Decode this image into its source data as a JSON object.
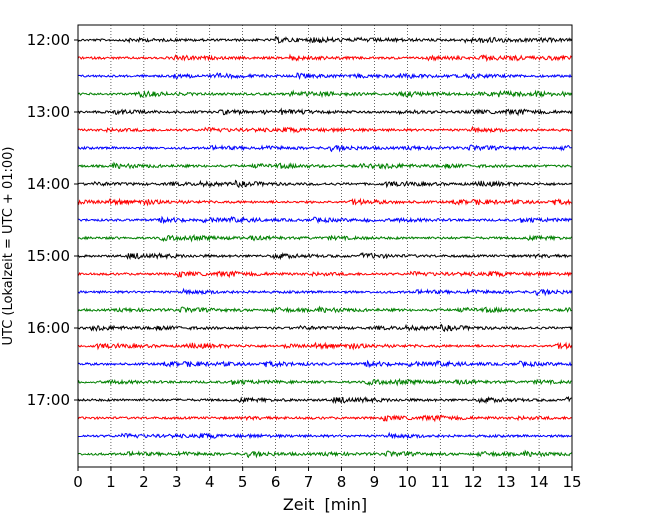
{
  "chart_data": {
    "type": "line",
    "subtype": "helicorder / seismogram drum plot",
    "title": "",
    "xlabel": "Zeit  [min]",
    "ylabel": "UTC (Lokalzeit = UTC + 01:00)",
    "xlim": [
      0,
      15
    ],
    "x_ticks": [
      0,
      1,
      2,
      3,
      4,
      5,
      6,
      7,
      8,
      9,
      10,
      11,
      12,
      13,
      14,
      15
    ],
    "x_tick_labels": [
      "0",
      "1",
      "2",
      "3",
      "4",
      "5",
      "6",
      "7",
      "8",
      "9",
      "10",
      "11",
      "12",
      "13",
      "14",
      "15"
    ],
    "y_tick_labels": [
      "12:00",
      "13:00",
      "14:00",
      "15:00",
      "16:00",
      "17:00"
    ],
    "trace_interval_minutes": 15,
    "grid": "vertical dotted lines at each minute",
    "legend": "none",
    "trace_color_cycle": [
      "#000000",
      "#ff0000",
      "#0000ff",
      "#008000"
    ],
    "traces": [
      {
        "start": "12:00"
      },
      {
        "start": "12:15"
      },
      {
        "start": "12:30"
      },
      {
        "start": "12:45"
      },
      {
        "start": "13:00"
      },
      {
        "start": "13:15"
      },
      {
        "start": "13:30"
      },
      {
        "start": "13:45"
      },
      {
        "start": "14:00"
      },
      {
        "start": "14:15"
      },
      {
        "start": "14:30"
      },
      {
        "start": "14:45"
      },
      {
        "start": "15:00"
      },
      {
        "start": "15:15"
      },
      {
        "start": "15:30"
      },
      {
        "start": "15:45"
      },
      {
        "start": "16:00"
      },
      {
        "start": "16:15"
      },
      {
        "start": "16:30"
      },
      {
        "start": "16:45"
      },
      {
        "start": "17:00"
      },
      {
        "start": "17:15"
      },
      {
        "start": "17:30"
      },
      {
        "start": "17:45"
      }
    ]
  }
}
